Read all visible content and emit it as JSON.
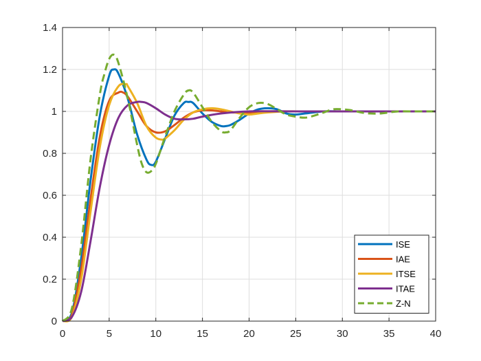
{
  "chart_data": {
    "type": "line",
    "xlim": [
      0,
      40
    ],
    "ylim": [
      0,
      1.4
    ],
    "x_ticks": [
      0,
      5,
      10,
      15,
      20,
      25,
      30,
      35,
      40
    ],
    "y_ticks": [
      0,
      0.2,
      0.4,
      0.6,
      0.8,
      1,
      1.2,
      1.4
    ],
    "x_tick_labels": [
      "0",
      "5",
      "10",
      "15",
      "20",
      "25",
      "30",
      "35",
      "40"
    ],
    "y_tick_labels": [
      "0",
      "0.2",
      "0.4",
      "0.6",
      "0.8",
      "1",
      "1.2",
      "1.4"
    ],
    "grid": true,
    "legend_position": "bottom-right",
    "series": [
      {
        "name": "ISE",
        "color": "#0072BD",
        "dash": "solid",
        "x": [
          0,
          1,
          2,
          3,
          4,
          5,
          5.5,
          6,
          7,
          8,
          9,
          9.5,
          10,
          11,
          12,
          13,
          13.5,
          14,
          15,
          16,
          17,
          17.5,
          18,
          19,
          20,
          21,
          22,
          23,
          24,
          25,
          26,
          28,
          30,
          33,
          36,
          40
        ],
        "y": [
          0,
          0.04,
          0.3,
          0.67,
          0.98,
          1.17,
          1.2,
          1.18,
          1.06,
          0.89,
          0.77,
          0.745,
          0.76,
          0.87,
          0.98,
          1.04,
          1.045,
          1.04,
          0.99,
          0.95,
          0.93,
          0.93,
          0.935,
          0.96,
          0.99,
          1.01,
          1.015,
          1.01,
          0.99,
          0.985,
          0.99,
          1.0,
          1.0,
          1.0,
          1.0,
          1.0
        ]
      },
      {
        "name": "IAE",
        "color": "#D95319",
        "dash": "solid",
        "x": [
          0,
          1,
          2,
          3,
          4,
          5,
          6,
          6.5,
          7,
          8,
          9,
          10,
          11,
          12,
          13,
          14,
          15,
          16,
          17,
          18,
          20,
          22,
          25,
          30,
          40
        ],
        "y": [
          0,
          0.03,
          0.25,
          0.58,
          0.88,
          1.05,
          1.09,
          1.09,
          1.07,
          1.0,
          0.93,
          0.9,
          0.905,
          0.935,
          0.97,
          0.995,
          1.005,
          1.005,
          1.0,
          0.995,
          0.995,
          1.0,
          1.0,
          1.0,
          1.0
        ]
      },
      {
        "name": "ITSE",
        "color": "#EDB120",
        "dash": "solid",
        "x": [
          0,
          1,
          2,
          3,
          4,
          5,
          6,
          6.8,
          7,
          8,
          9,
          10,
          10.8,
          11,
          12,
          13,
          14,
          15,
          16,
          17,
          18,
          19,
          20,
          21,
          22,
          24,
          26,
          28,
          30,
          35,
          40
        ],
        "y": [
          0,
          0.02,
          0.2,
          0.52,
          0.83,
          1.03,
          1.12,
          1.13,
          1.12,
          1.04,
          0.93,
          0.875,
          0.865,
          0.87,
          0.91,
          0.96,
          0.995,
          1.01,
          1.015,
          1.01,
          1.0,
          0.99,
          0.985,
          0.99,
          0.995,
          1.0,
          1.0,
          1.0,
          1.0,
          1.0,
          1.0
        ]
      },
      {
        "name": "ITAE",
        "color": "#7E2F8E",
        "dash": "solid",
        "x": [
          0,
          1,
          2,
          3,
          4,
          5,
          6,
          7,
          8,
          8.5,
          9,
          10,
          11,
          12,
          13,
          14,
          15,
          17,
          20,
          25,
          30,
          40
        ],
        "y": [
          0,
          0.02,
          0.14,
          0.38,
          0.64,
          0.84,
          0.97,
          1.03,
          1.045,
          1.045,
          1.04,
          1.015,
          0.985,
          0.965,
          0.962,
          0.965,
          0.975,
          0.99,
          1.0,
          1.0,
          1.0,
          1.0
        ]
      },
      {
        "name": "Z-N",
        "color": "#77AC30",
        "dash": "dashed",
        "x": [
          0,
          1,
          2,
          3,
          4,
          4.5,
          5,
          5.5,
          6,
          7,
          8,
          8.5,
          9,
          9.5,
          10,
          11,
          12,
          13,
          13.5,
          14,
          15,
          16,
          17,
          17.5,
          18,
          19,
          20,
          21,
          22,
          23,
          24,
          25,
          26,
          27,
          28,
          29,
          30,
          31,
          32,
          33,
          34,
          35,
          36,
          38,
          40
        ],
        "y": [
          0,
          0.06,
          0.36,
          0.77,
          1.08,
          1.18,
          1.25,
          1.27,
          1.23,
          1.06,
          0.84,
          0.75,
          0.71,
          0.715,
          0.75,
          0.88,
          1.0,
          1.08,
          1.1,
          1.09,
          1.02,
          0.95,
          0.905,
          0.9,
          0.91,
          0.97,
          1.02,
          1.04,
          1.035,
          1.01,
          0.985,
          0.975,
          0.97,
          0.98,
          0.995,
          1.01,
          1.01,
          1.005,
          0.995,
          0.99,
          0.99,
          0.995,
          1.0,
          1.0,
          1.0
        ]
      }
    ]
  }
}
